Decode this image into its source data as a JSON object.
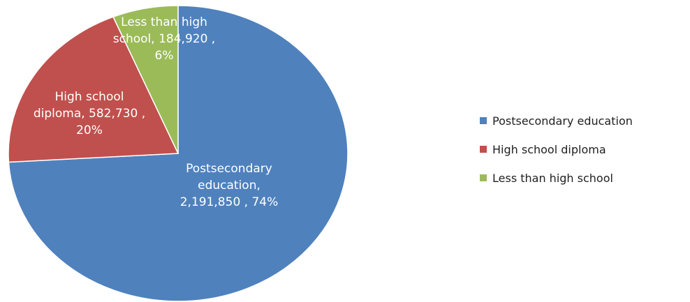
{
  "chart_data": {
    "type": "pie",
    "title": "",
    "slices": [
      {
        "name": "Postsecondary education",
        "value": 2191850,
        "percent": 74,
        "color": "#4f81bd",
        "label_lines": [
          "Postsecondary",
          "education,",
          "2,191,850 , 74%"
        ]
      },
      {
        "name": "High school diploma",
        "value": 582730,
        "percent": 20,
        "color": "#c0504d",
        "label_lines": [
          "High school",
          "diploma, 582,730 ,",
          "20%"
        ]
      },
      {
        "name": "Less than high school",
        "value": 184920,
        "percent": 6,
        "color": "#9bbb59",
        "label_lines": [
          "Less than high",
          "school, 184,920 ,",
          "6%"
        ]
      }
    ],
    "legend_position": "right"
  }
}
